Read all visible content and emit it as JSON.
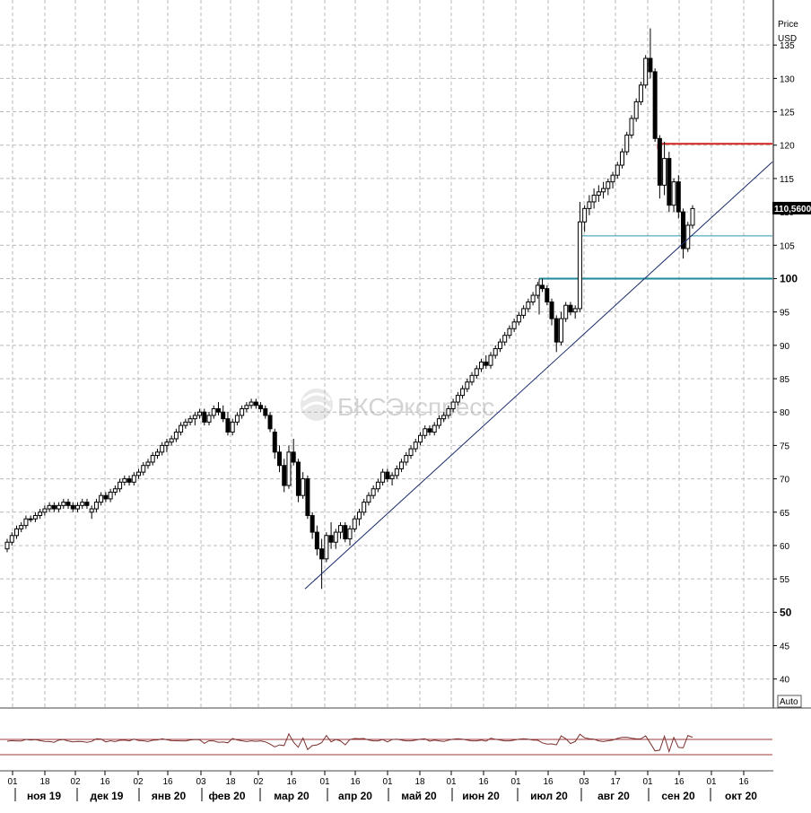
{
  "chart_data": {
    "type": "candlestick",
    "y_axis": {
      "title_line1": "Price",
      "title_line2": "USD",
      "ylim": [
        37,
        140
      ],
      "ticks": [
        40,
        45,
        50,
        55,
        60,
        65,
        70,
        75,
        80,
        85,
        90,
        95,
        100,
        105,
        110,
        115,
        120,
        125,
        130,
        135
      ],
      "bold_ticks": [
        50,
        100
      ],
      "auto_label": "Auto"
    },
    "x_axis": {
      "day_ticks": [
        "01",
        "18",
        "02",
        "16",
        "02",
        "16",
        "03",
        "18",
        "02",
        "16",
        "01",
        "16",
        "01",
        "18",
        "01",
        "16",
        "01",
        "16",
        "03",
        "17",
        "01",
        "16",
        "01",
        "16"
      ],
      "months": [
        "ноя 19",
        "дек 19",
        "янв 20",
        "фев 20",
        "мар 20",
        "апр 20",
        "май 20",
        "июн 20",
        "июл 20",
        "авг 20",
        "сен 20",
        "окт 20"
      ]
    },
    "current_price": {
      "value": 110.56,
      "label": "110,5600"
    },
    "watermark": "БКСЭкспресс",
    "series": [
      {
        "ohlc": [
          [
            59.5,
            61.0,
            59.0,
            60.5
          ],
          [
            60.5,
            62.0,
            60.0,
            61.5
          ],
          [
            61.5,
            63.0,
            61.0,
            62.5
          ],
          [
            62.5,
            63.5,
            62.0,
            63.0
          ],
          [
            63.0,
            64.5,
            62.5,
            64.0
          ],
          [
            64.0,
            64.5,
            63.5,
            64.0
          ],
          [
            64.0,
            65.0,
            63.5,
            64.5
          ],
          [
            64.5,
            65.5,
            64.0,
            65.0
          ],
          [
            65.0,
            66.0,
            64.5,
            65.5
          ],
          [
            65.5,
            66.5,
            65.0,
            66.0
          ],
          [
            66.0,
            66.5,
            65.0,
            65.5
          ],
          [
            65.5,
            66.5,
            65.0,
            66.0
          ],
          [
            66.0,
            67.0,
            65.5,
            66.5
          ],
          [
            66.5,
            67.0,
            65.5,
            66.0
          ],
          [
            66.0,
            66.5,
            65.0,
            65.5
          ],
          [
            65.5,
            66.5,
            65.0,
            66.0
          ],
          [
            66.0,
            67.0,
            65.5,
            66.5
          ],
          [
            66.5,
            67.0,
            65.5,
            66.0
          ],
          [
            65.0,
            66.0,
            64.0,
            65.5
          ],
          [
            65.5,
            67.0,
            65.0,
            66.5
          ],
          [
            66.5,
            68.0,
            66.0,
            67.5
          ],
          [
            67.5,
            68.0,
            66.5,
            67.0
          ],
          [
            67.0,
            68.5,
            66.5,
            68.0
          ],
          [
            68.0,
            69.0,
            67.5,
            68.5
          ],
          [
            68.5,
            70.0,
            68.0,
            69.5
          ],
          [
            69.5,
            70.5,
            69.0,
            70.0
          ],
          [
            70.0,
            70.5,
            69.0,
            69.5
          ],
          [
            69.5,
            71.0,
            69.0,
            70.5
          ],
          [
            70.5,
            71.5,
            70.0,
            71.0
          ],
          [
            71.0,
            72.5,
            70.5,
            72.0
          ],
          [
            72.0,
            73.0,
            71.5,
            72.5
          ],
          [
            72.5,
            74.0,
            72.0,
            73.5
          ],
          [
            73.5,
            74.5,
            73.0,
            74.0
          ],
          [
            74.0,
            75.5,
            73.5,
            75.0
          ],
          [
            75.0,
            76.0,
            74.0,
            75.5
          ],
          [
            75.5,
            76.5,
            75.0,
            76.0
          ],
          [
            76.0,
            77.5,
            75.5,
            77.0
          ],
          [
            77.0,
            78.5,
            76.5,
            78.0
          ],
          [
            78.0,
            79.0,
            77.5,
            78.5
          ],
          [
            78.5,
            79.5,
            78.0,
            79.0
          ],
          [
            79.0,
            80.0,
            78.0,
            79.5
          ],
          [
            79.5,
            80.5,
            79.0,
            80.0
          ],
          [
            80.0,
            80.5,
            78.0,
            78.5
          ],
          [
            78.5,
            80.0,
            78.0,
            79.5
          ],
          [
            79.5,
            81.0,
            79.0,
            80.5
          ],
          [
            80.5,
            81.5,
            79.5,
            80.0
          ],
          [
            80.0,
            81.0,
            78.5,
            79.0
          ],
          [
            79.0,
            80.0,
            76.5,
            77.0
          ],
          [
            77.0,
            79.0,
            76.5,
            78.5
          ],
          [
            78.5,
            80.0,
            78.0,
            79.5
          ],
          [
            79.5,
            81.0,
            79.0,
            80.5
          ],
          [
            80.5,
            81.5,
            80.0,
            81.0
          ],
          [
            81.0,
            82.0,
            80.5,
            81.5
          ],
          [
            81.5,
            82.0,
            80.5,
            81.0
          ],
          [
            81.0,
            81.5,
            80.0,
            80.5
          ],
          [
            80.5,
            81.0,
            79.0,
            79.5
          ],
          [
            79.5,
            80.0,
            77.0,
            77.5
          ],
          [
            77.0,
            77.5,
            73.0,
            74.0
          ],
          [
            74.0,
            75.0,
            71.0,
            72.0
          ],
          [
            72.0,
            73.0,
            68.0,
            69.0
          ],
          [
            69.0,
            75.0,
            68.5,
            74.0
          ],
          [
            74.0,
            76.0,
            72.0,
            72.5
          ],
          [
            72.5,
            73.0,
            66.5,
            67.5
          ],
          [
            67.5,
            71.0,
            67.0,
            70.0
          ],
          [
            70.0,
            70.5,
            64.0,
            64.5
          ],
          [
            64.5,
            65.0,
            61.0,
            62.0
          ],
          [
            62.0,
            63.0,
            58.5,
            59.5
          ],
          [
            59.5,
            61.0,
            53.5,
            58.0
          ],
          [
            58.0,
            62.0,
            57.5,
            61.5
          ],
          [
            61.5,
            63.5,
            59.5,
            60.5
          ],
          [
            60.5,
            62.5,
            59.5,
            62.0
          ],
          [
            62.0,
            63.5,
            61.0,
            63.0
          ],
          [
            63.0,
            63.5,
            60.5,
            61.0
          ],
          [
            61.0,
            63.0,
            60.0,
            62.5
          ],
          [
            62.5,
            64.5,
            62.0,
            64.0
          ],
          [
            64.0,
            65.5,
            63.0,
            65.0
          ],
          [
            65.0,
            67.0,
            64.5,
            66.5
          ],
          [
            66.5,
            68.0,
            66.0,
            67.5
          ],
          [
            67.5,
            69.0,
            67.0,
            68.5
          ],
          [
            68.5,
            70.0,
            68.0,
            69.5
          ],
          [
            69.5,
            71.5,
            69.0,
            71.0
          ],
          [
            71.0,
            71.5,
            69.5,
            70.0
          ],
          [
            70.0,
            71.0,
            69.0,
            70.5
          ],
          [
            70.5,
            72.0,
            70.0,
            71.5
          ],
          [
            71.5,
            73.0,
            71.0,
            72.5
          ],
          [
            72.5,
            74.0,
            72.0,
            73.5
          ],
          [
            73.5,
            75.0,
            73.0,
            74.5
          ],
          [
            74.5,
            76.0,
            74.0,
            75.5
          ],
          [
            75.5,
            77.0,
            75.0,
            76.5
          ],
          [
            76.5,
            78.0,
            76.0,
            77.5
          ],
          [
            77.5,
            78.0,
            76.5,
            77.0
          ],
          [
            77.0,
            78.5,
            76.5,
            78.0
          ],
          [
            78.0,
            79.5,
            77.5,
            79.0
          ],
          [
            79.0,
            80.0,
            78.5,
            79.5
          ],
          [
            79.5,
            81.0,
            79.0,
            80.5
          ],
          [
            80.5,
            82.0,
            80.0,
            81.5
          ],
          [
            81.5,
            83.0,
            81.0,
            82.5
          ],
          [
            82.5,
            84.0,
            82.0,
            83.5
          ],
          [
            83.5,
            85.0,
            83.0,
            84.5
          ],
          [
            84.5,
            86.0,
            84.0,
            85.5
          ],
          [
            85.5,
            87.0,
            85.0,
            86.5
          ],
          [
            86.5,
            88.0,
            86.0,
            87.5
          ],
          [
            87.5,
            88.5,
            86.5,
            87.0
          ],
          [
            87.0,
            89.0,
            86.5,
            88.5
          ],
          [
            88.5,
            90.0,
            88.0,
            89.5
          ],
          [
            89.5,
            91.0,
            89.0,
            90.5
          ],
          [
            90.5,
            92.0,
            90.0,
            91.5
          ],
          [
            91.5,
            93.0,
            91.0,
            92.5
          ],
          [
            92.5,
            94.0,
            92.0,
            93.5
          ],
          [
            93.5,
            95.0,
            93.0,
            94.5
          ],
          [
            94.5,
            96.0,
            94.0,
            95.5
          ],
          [
            95.5,
            97.0,
            95.0,
            96.5
          ],
          [
            96.5,
            98.0,
            96.0,
            97.5
          ],
          [
            97.5,
            99.5,
            97.0,
            99.0
          ],
          [
            99.0,
            100.0,
            98.0,
            98.5
          ],
          [
            98.5,
            99.0,
            96.0,
            96.5
          ],
          [
            96.5,
            97.0,
            93.0,
            94.0
          ],
          [
            94.0,
            94.5,
            89.0,
            90.5
          ],
          [
            90.5,
            95.0,
            90.0,
            94.0
          ],
          [
            94.0,
            96.5,
            93.5,
            96.0
          ],
          [
            96.0,
            96.5,
            94.5,
            95.0
          ],
          [
            95.0,
            96.0,
            94.0,
            95.5
          ],
          [
            95.5,
            111.5,
            95.0,
            108.5
          ],
          [
            108.5,
            111.0,
            107.0,
            110.5
          ],
          [
            110.5,
            112.5,
            109.5,
            111.5
          ],
          [
            111.5,
            113.5,
            110.5,
            112.5
          ],
          [
            112.5,
            114.0,
            111.5,
            113.0
          ],
          [
            113.0,
            114.5,
            112.0,
            113.5
          ],
          [
            113.5,
            115.0,
            112.5,
            114.5
          ],
          [
            114.5,
            116.0,
            113.5,
            115.5
          ],
          [
            115.5,
            117.5,
            115.0,
            117.0
          ],
          [
            117.0,
            119.5,
            116.5,
            119.0
          ],
          [
            119.0,
            122.0,
            118.5,
            121.5
          ],
          [
            121.5,
            124.5,
            121.0,
            124.0
          ],
          [
            124.0,
            127.0,
            123.5,
            126.5
          ],
          [
            126.5,
            129.5,
            126.0,
            129.0
          ],
          [
            129.0,
            133.5,
            128.5,
            133.0
          ],
          [
            133.0,
            137.5,
            130.0,
            131.0
          ],
          [
            131.0,
            131.5,
            120.5,
            121.0
          ],
          [
            121.0,
            121.5,
            112.0,
            114.0
          ],
          [
            114.0,
            120.5,
            112.5,
            118.0
          ],
          [
            118.0,
            119.0,
            110.0,
            111.0
          ],
          [
            111.0,
            115.0,
            110.0,
            114.5
          ],
          [
            114.5,
            115.5,
            109.0,
            110.0
          ],
          [
            110.0,
            110.5,
            103.0,
            104.5
          ],
          [
            104.5,
            108.5,
            104.0,
            108.0
          ],
          [
            108.0,
            111.0,
            107.5,
            110.5
          ]
        ]
      }
    ],
    "support_trendline": [
      53.5,
      117.5
    ],
    "horizontal_levels": [
      {
        "value": 120.2,
        "color": "#d42020"
      },
      {
        "value": 106.4,
        "color": "#2a97ad"
      },
      {
        "value": 100.0,
        "color": "#1f8a9a"
      }
    ],
    "indicator_panel": {
      "levels": [
        "upper",
        "lower"
      ]
    }
  },
  "colors": {
    "grid": "#b9b9b9",
    "candle": "#000000",
    "resistance": "#d42020",
    "support_upper": "#2a97ad",
    "support_lower": "#1f8a9a",
    "trendline": "#1a2a6a",
    "indicator_line": "#7a3030",
    "indicator_band": "#a03a3a"
  }
}
